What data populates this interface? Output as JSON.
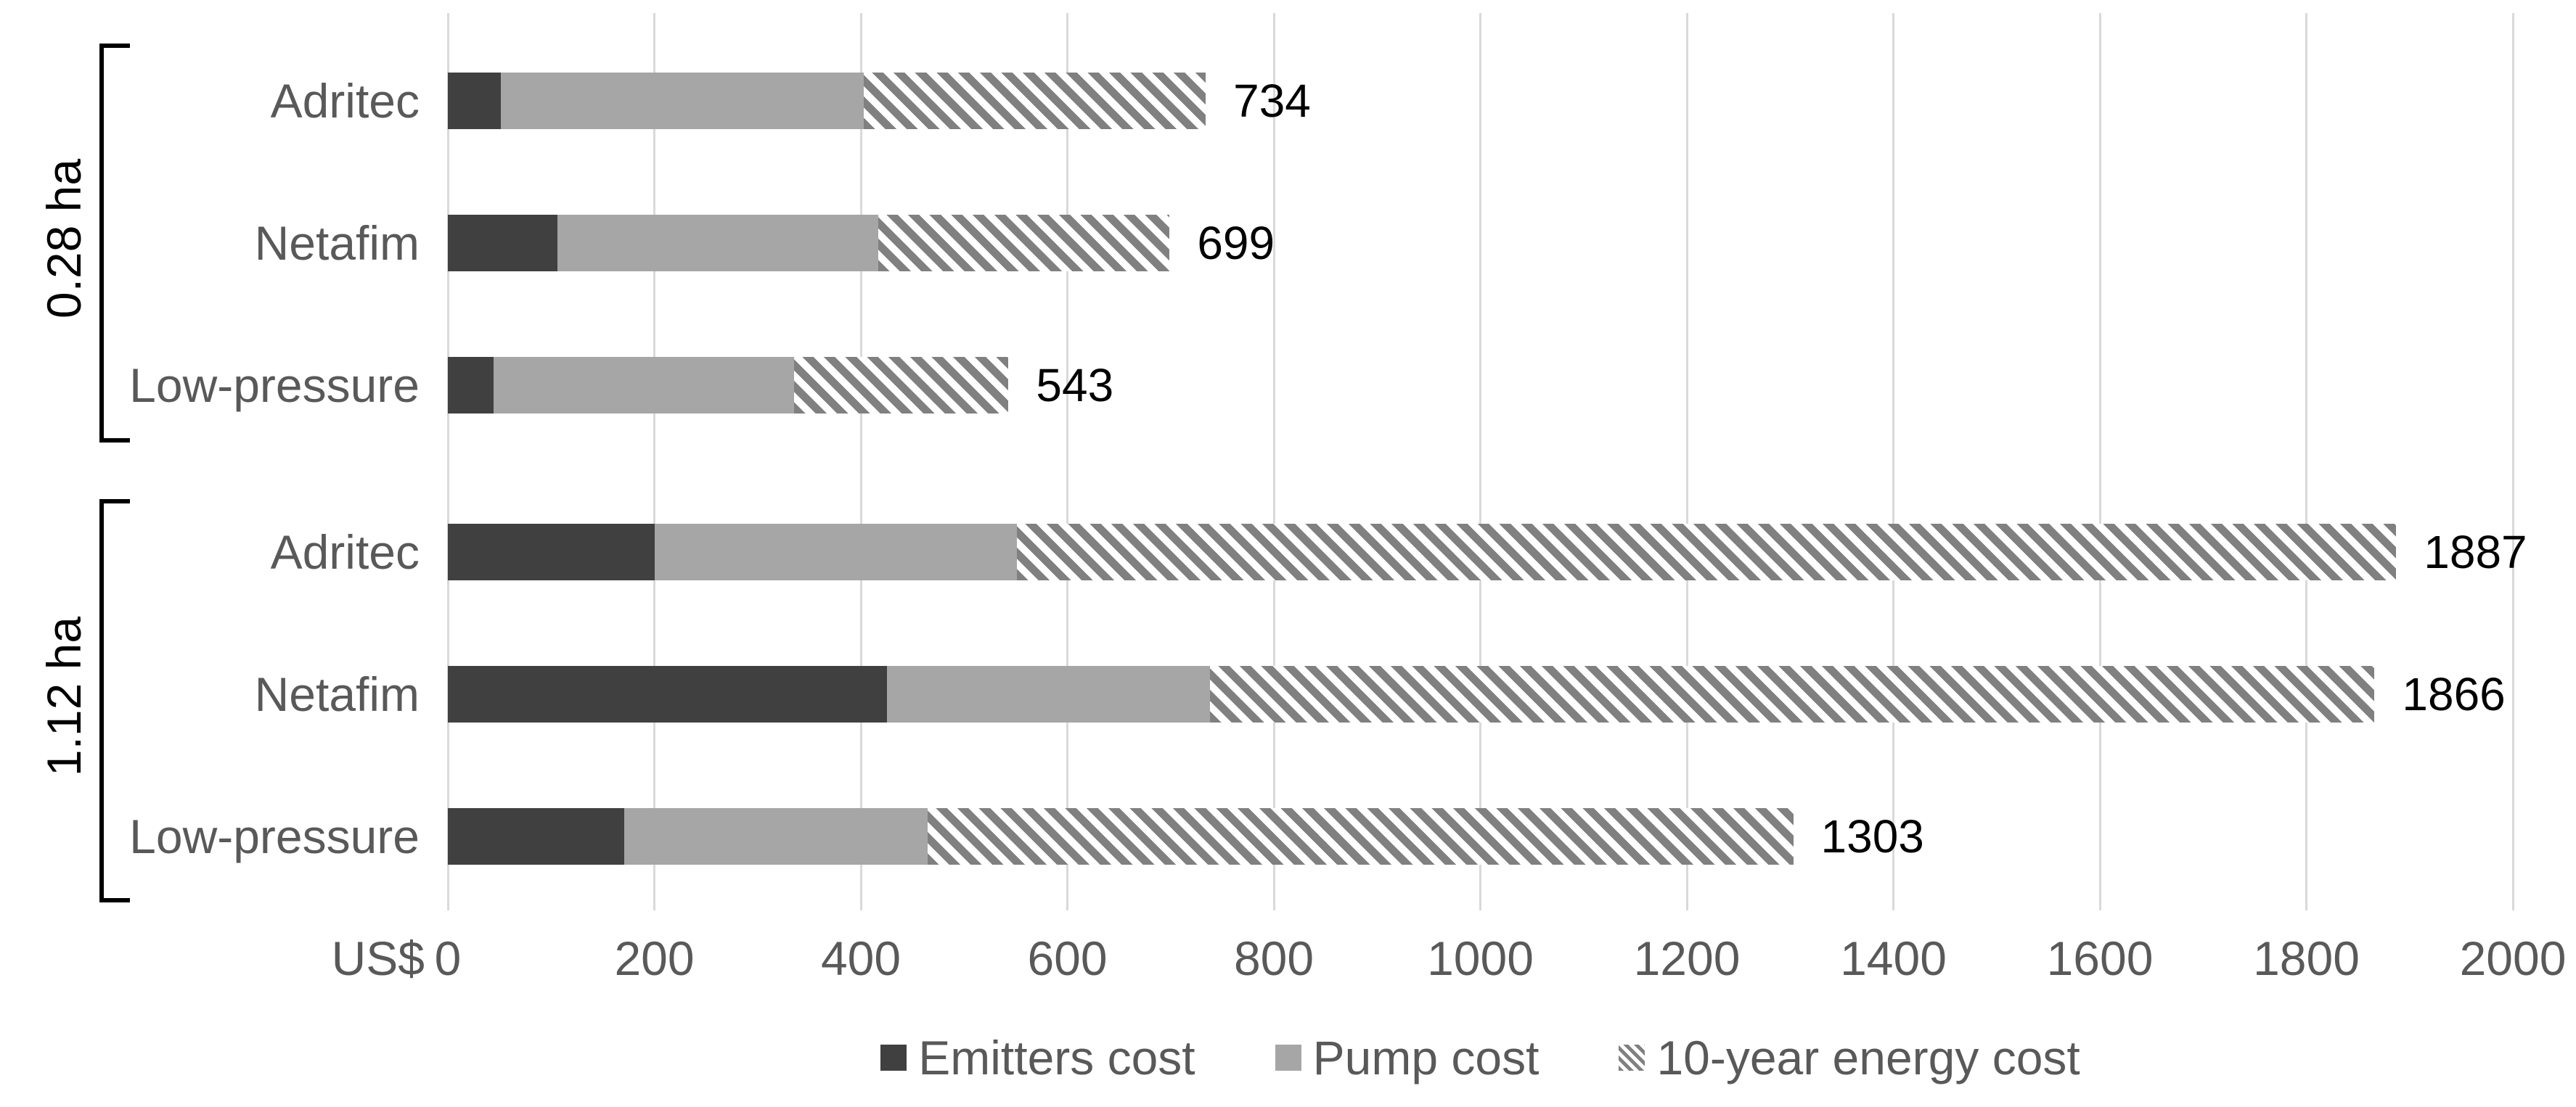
{
  "chart_data": {
    "type": "bar",
    "orientation": "horizontal",
    "stacked": true,
    "unit_label": "US$",
    "xlim": [
      0,
      2000
    ],
    "x_ticks": [
      0,
      200,
      400,
      600,
      800,
      1000,
      1200,
      1400,
      1600,
      1800,
      2000
    ],
    "grid": true,
    "legend_position": "bottom",
    "series": [
      {
        "name": "Emitters cost",
        "style": "solid",
        "color": "#404040"
      },
      {
        "name": "Pump cost",
        "style": "solid",
        "color": "#a6a6a6"
      },
      {
        "name": "10-year energy cost",
        "style": "hatch",
        "color": "#808080"
      }
    ],
    "groups": [
      {
        "label": "0.28 ha",
        "rows": [
          {
            "category": "Adritec",
            "values": [
              51,
              352,
              331
            ],
            "total": 734
          },
          {
            "category": "Netafim",
            "values": [
              106,
              311,
              282
            ],
            "total": 699
          },
          {
            "category": "Low-pressure",
            "values": [
              44,
              291,
              208
            ],
            "total": 543
          }
        ]
      },
      {
        "label": "1.12 ha",
        "rows": [
          {
            "category": "Adritec",
            "values": [
              200,
              351,
              1336
            ],
            "total": 1887
          },
          {
            "category": "Netafim",
            "values": [
              425,
              313,
              1128
            ],
            "total": 1866
          },
          {
            "category": "Low-pressure",
            "values": [
              171,
              294,
              838
            ],
            "total": 1303
          }
        ]
      }
    ],
    "colors": {
      "emitters": "#404040",
      "pump": "#a6a6a6",
      "energy_hatch": "#808080",
      "gridline": "#d9d9d9",
      "label_text": "#595959",
      "value_text": "#000000"
    }
  }
}
